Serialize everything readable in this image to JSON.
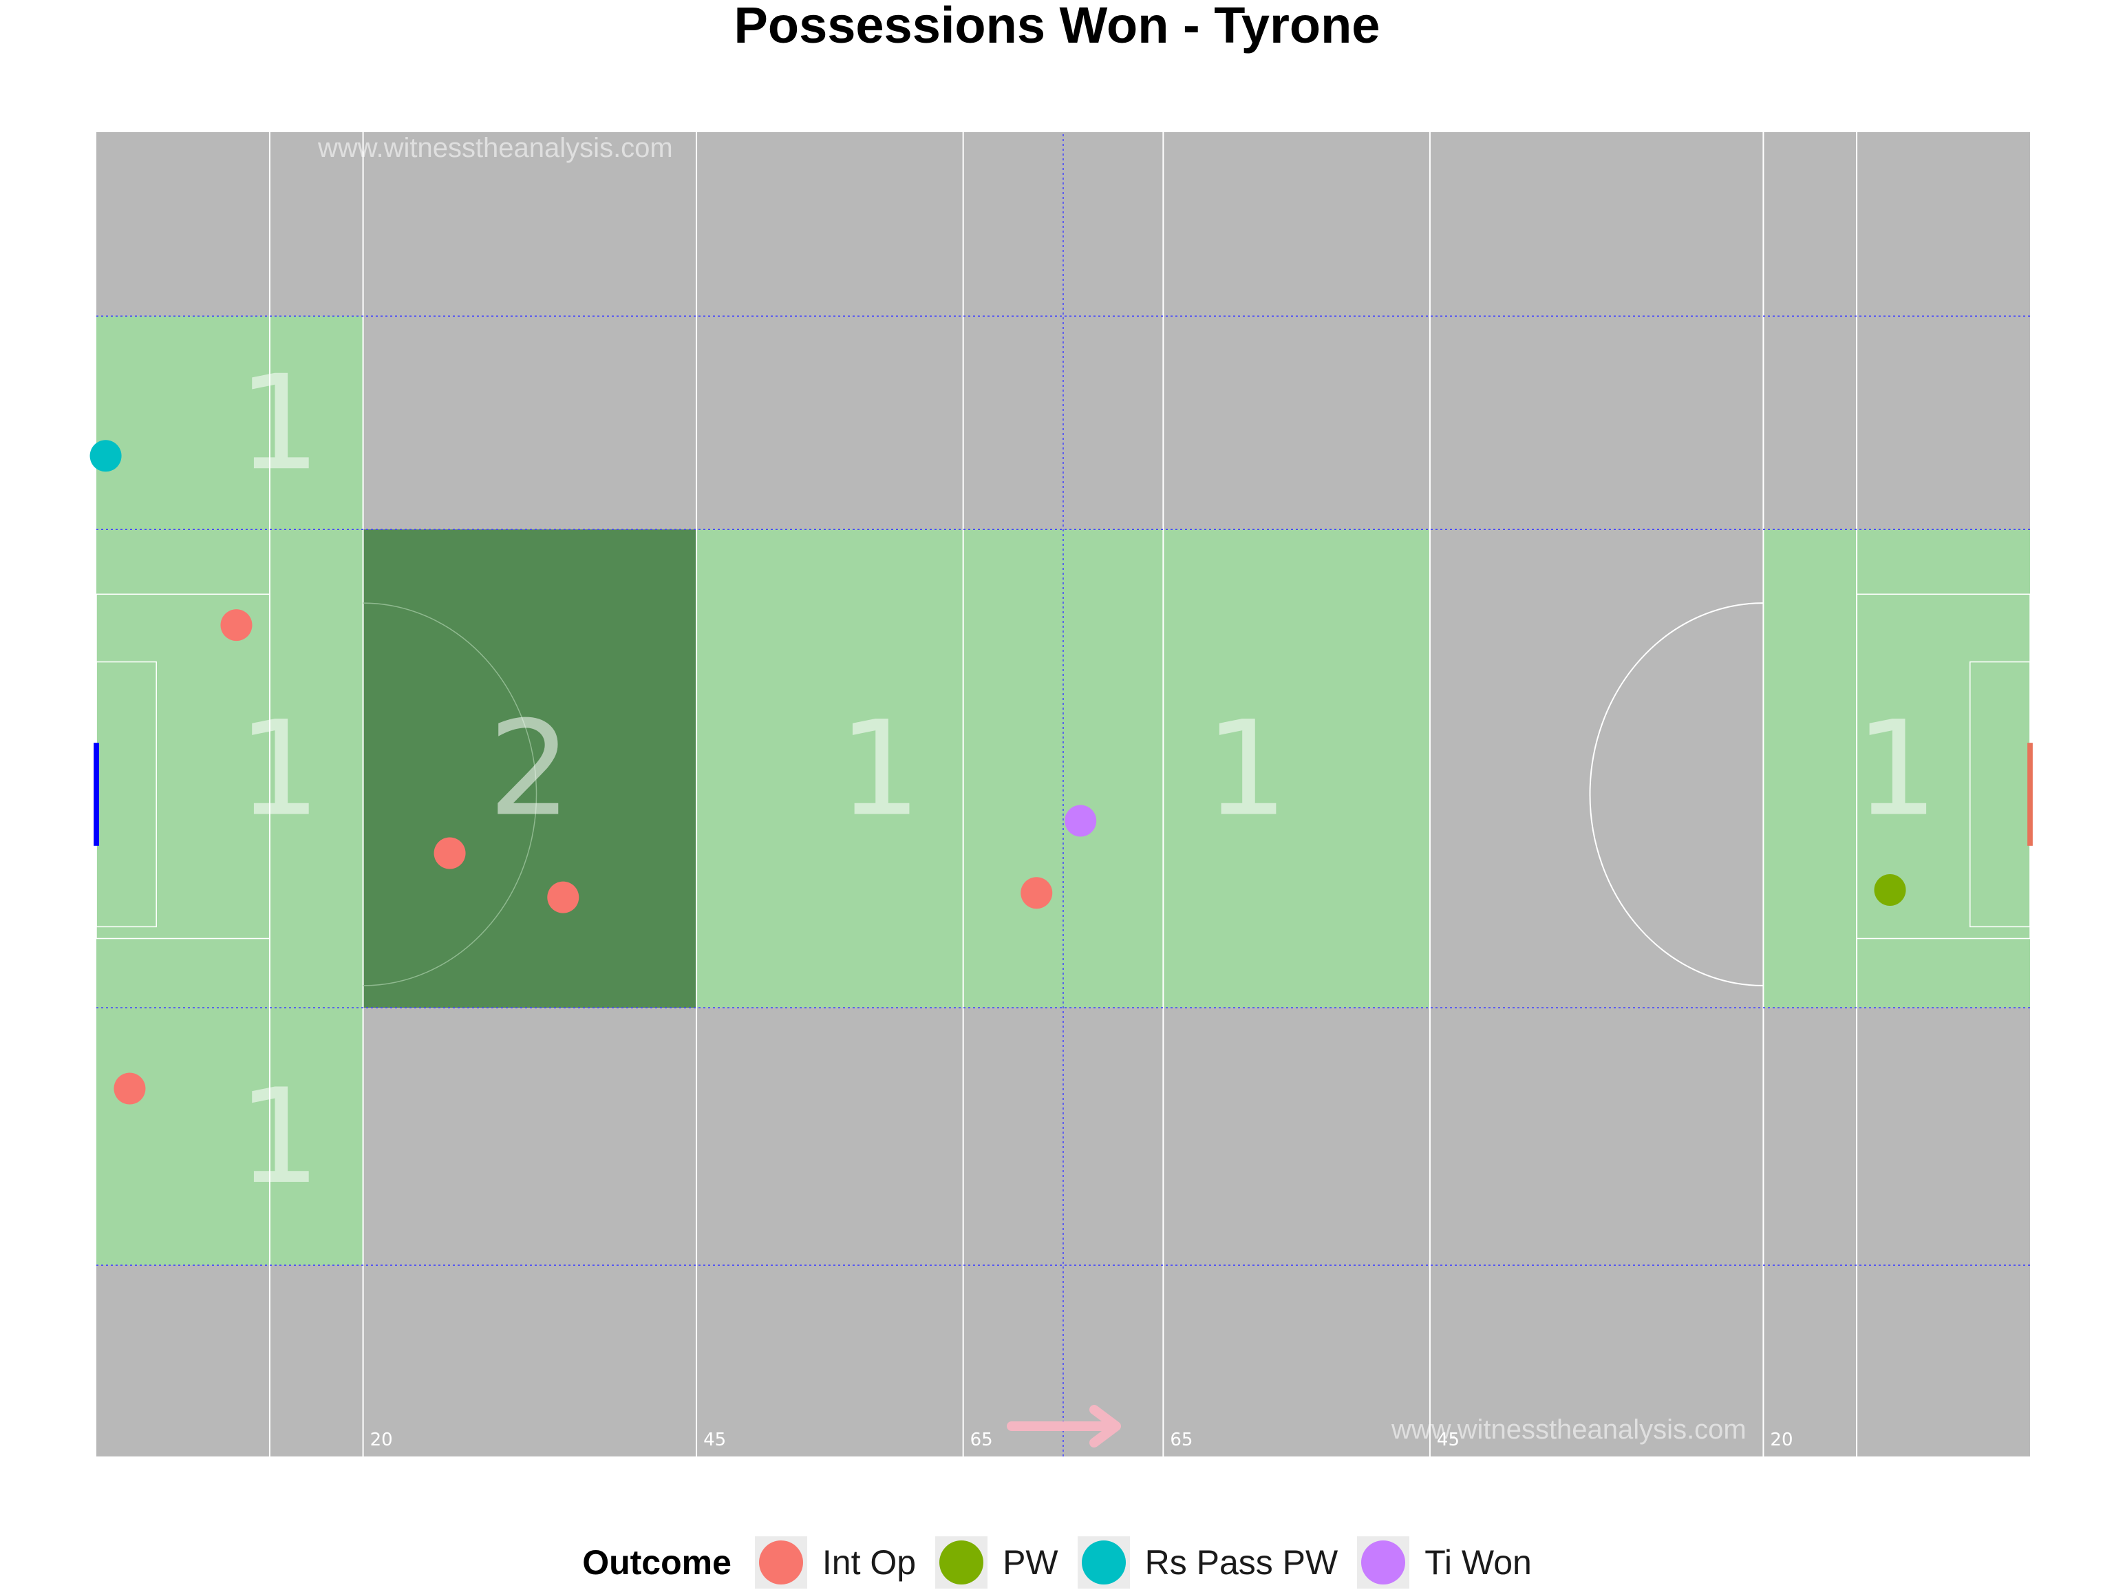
{
  "title": "Possessions Won - Tyrone",
  "watermark": "www.witnesstheanalysis.com",
  "legend": {
    "title": "Outcome",
    "items": [
      {
        "label": "Int Op",
        "color": "#F8766D"
      },
      {
        "label": "PW",
        "color": "#7CAE00"
      },
      {
        "label": "Rs Pass PW",
        "color": "#00BFC4"
      },
      {
        "label": "Ti Won",
        "color": "#C77CFF"
      }
    ]
  },
  "chart_data": {
    "type": "scatter",
    "title": "Possessions Won - Tyrone",
    "xlim": [
      0,
      145
    ],
    "ylim": [
      0,
      90
    ],
    "x_line_labels": [
      "20",
      "45",
      "65",
      "65",
      "45",
      "20"
    ],
    "colors": {
      "background": "#b8b8b8",
      "zone_1": "#a2d7a2",
      "zone_2": "#538a53",
      "line": "#ffffff",
      "zone_divider": "#4040ff",
      "left_goal": "#0000ff",
      "right_goal": "#e8735a",
      "arrow": "#f4b6c2"
    },
    "zone_counts": [
      {
        "x": [
          0,
          20
        ],
        "y": [
          63,
          77.5
        ],
        "count": 1,
        "label": "1"
      },
      {
        "x": [
          0,
          20
        ],
        "y": [
          30.5,
          63
        ],
        "count": 1,
        "label": "1"
      },
      {
        "x": [
          0,
          20
        ],
        "y": [
          13,
          30.5
        ],
        "count": 1,
        "label": "1"
      },
      {
        "x": [
          20,
          45
        ],
        "y": [
          30.5,
          63
        ],
        "count": 2,
        "label": "2"
      },
      {
        "x": [
          45,
          72.5
        ],
        "y": [
          30.5,
          63
        ],
        "count": 1,
        "label": "1"
      },
      {
        "x": [
          72.5,
          100
        ],
        "y": [
          30.5,
          63
        ],
        "count": 1,
        "label": "1"
      },
      {
        "x": [
          125,
          145
        ],
        "y": [
          30.5,
          63
        ],
        "count": 1,
        "label": "1"
      }
    ],
    "series": [
      {
        "name": "Int Op",
        "color": "#F8766D",
        "points": [
          [
            10.5,
            56.5
          ],
          [
            2.5,
            25
          ],
          [
            26.5,
            41
          ],
          [
            35,
            38
          ],
          [
            70.5,
            38.3
          ]
        ]
      },
      {
        "name": "PW",
        "color": "#7CAE00",
        "points": [
          [
            134.5,
            38.5
          ]
        ]
      },
      {
        "name": "Rs Pass PW",
        "color": "#00BFC4",
        "points": [
          [
            0.7,
            68
          ]
        ]
      },
      {
        "name": "Ti Won",
        "color": "#C77CFF",
        "points": [
          [
            73.8,
            43.2
          ]
        ]
      }
    ],
    "attack_direction": "right",
    "legend_position": "bottom",
    "grid": false
  }
}
